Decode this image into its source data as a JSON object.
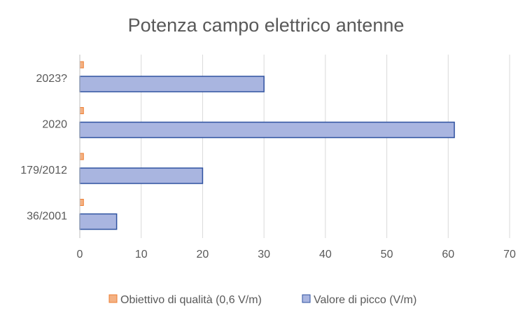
{
  "chart_data": {
    "type": "bar",
    "orientation": "horizontal",
    "title": "Potenza campo elettrico antenne",
    "categories": [
      "36/2001",
      "179/2012",
      "2020",
      "2023?"
    ],
    "series": [
      {
        "name": "Obiettivo di qualità (0,6 V/m)",
        "values": [
          0.6,
          0.6,
          0.6,
          0.6
        ],
        "color": "#f4b183",
        "stroke": "#ed7d31"
      },
      {
        "name": "Valore di picco (V/m)",
        "values": [
          6,
          20,
          61,
          30
        ],
        "color": "#a9b5e0",
        "stroke": "#2f52a0"
      }
    ],
    "xlim": [
      0,
      70
    ],
    "xticks": [
      "0",
      "10",
      "20",
      "30",
      "40",
      "50",
      "60",
      "70"
    ],
    "grid": true,
    "legend_position": "bottom"
  }
}
